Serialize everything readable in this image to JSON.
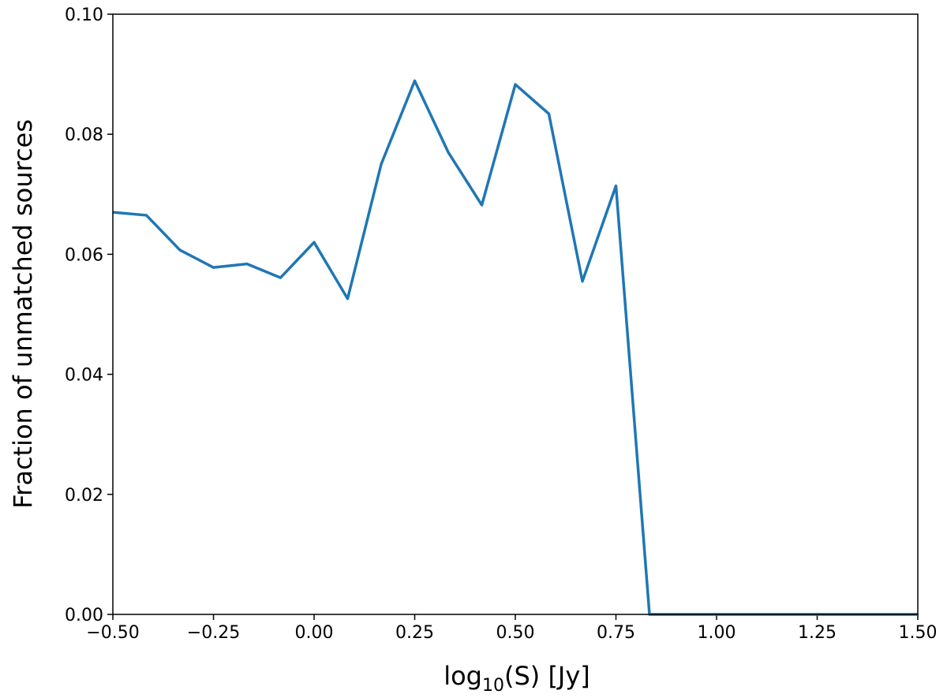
{
  "chart_data": {
    "type": "line",
    "xlabel": {
      "base": "log",
      "sub": "10",
      "rest": "(S) [Jy]"
    },
    "ylabel": "Fraction of unmatched sources",
    "x": [
      -0.5,
      -0.4167,
      -0.3333,
      -0.25,
      -0.1667,
      -0.0833,
      0,
      0.0833,
      0.1667,
      0.25,
      0.3333,
      0.4167,
      0.5,
      0.5833,
      0.6667,
      0.75,
      0.8333,
      0.9167,
      1.0,
      1.0833,
      1.1667,
      1.25,
      1.3333,
      1.4167,
      1.5
    ],
    "series": [
      {
        "color": "#1f77b4",
        "values": [
          0.067,
          0.0665,
          0.0607,
          0.0578,
          0.0584,
          0.0561,
          0.062,
          0.0526,
          0.075,
          0.0889,
          0.077,
          0.0682,
          0.0883,
          0.0834,
          0.0555,
          0.0714,
          0,
          0,
          0,
          0,
          0,
          0,
          0,
          0,
          0
        ]
      }
    ],
    "xlim": [
      -0.5,
      1.5
    ],
    "ylim": [
      0,
      0.1
    ],
    "xticks": [
      {
        "value": -0.5,
        "label": "−0.50"
      },
      {
        "value": -0.25,
        "label": "−0.25"
      },
      {
        "value": 0,
        "label": "0.00"
      },
      {
        "value": 0.25,
        "label": "0.25"
      },
      {
        "value": 0.5,
        "label": "0.50"
      },
      {
        "value": 0.75,
        "label": "0.75"
      },
      {
        "value": 1.0,
        "label": "1.00"
      },
      {
        "value": 1.25,
        "label": "1.25"
      },
      {
        "value": 1.5,
        "label": "1.50"
      }
    ],
    "yticks": [
      {
        "value": 0,
        "label": "0.00"
      },
      {
        "value": 0.02,
        "label": "0.02"
      },
      {
        "value": 0.04,
        "label": "0.04"
      },
      {
        "value": 0.06,
        "label": "0.06"
      },
      {
        "value": 0.08,
        "label": "0.08"
      },
      {
        "value": 0.1,
        "label": "0.10"
      }
    ]
  }
}
